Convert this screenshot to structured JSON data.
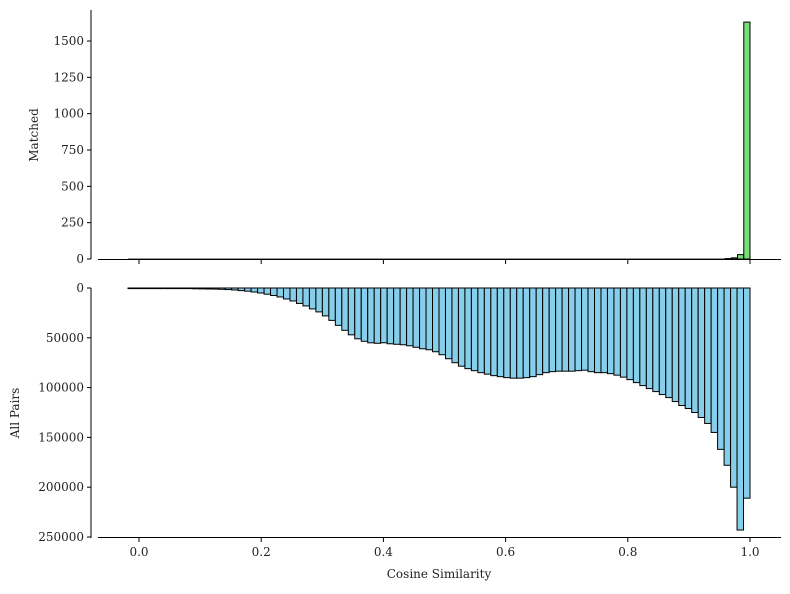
{
  "chart_data": [
    {
      "panel": "top",
      "type": "bar",
      "subtype": "histogram",
      "ylabel": "Matched",
      "xlabel": "",
      "ylim": [
        0,
        1720
      ],
      "yticks": [
        0,
        250,
        500,
        750,
        1000,
        1250,
        1500
      ],
      "ytick_labels": [
        "0",
        "250",
        "500",
        "750",
        "1000",
        "1250",
        "1500"
      ],
      "xlim": [
        -0.07,
        1.05
      ],
      "xticks": [
        0.0,
        0.2,
        0.4,
        0.6,
        0.8,
        1.0
      ],
      "xtick_labels_visible": false,
      "color": "#77dd77",
      "edgecolor": "#000000",
      "bins": [
        {
          "x0": 0.9592,
          "x1": 0.9694,
          "value": 3
        },
        {
          "x0": 0.9694,
          "x1": 0.9796,
          "value": 8
        },
        {
          "x0": 0.9796,
          "x1": 0.9898,
          "value": 30
        },
        {
          "x0": 0.9898,
          "x1": 1.0,
          "value": 1630
        }
      ],
      "note": "All other bins near 0"
    },
    {
      "panel": "bottom",
      "type": "bar",
      "subtype": "histogram (inverted y-axis)",
      "ylabel": "All Pairs",
      "xlabel": "Cosine Similarity",
      "ylim": [
        0,
        252000
      ],
      "y_inverted": true,
      "yticks": [
        0,
        50000,
        100000,
        150000,
        200000,
        250000
      ],
      "ytick_labels": [
        "0",
        "50000",
        "100000",
        "150000",
        "200000",
        "250000"
      ],
      "xlim": [
        -0.07,
        1.05
      ],
      "xticks": [
        0.0,
        0.2,
        0.4,
        0.6,
        0.8,
        1.0
      ],
      "xtick_labels": [
        "0.0",
        "0.2",
        "0.4",
        "0.6",
        "0.8",
        "1.0"
      ],
      "color": "#87ceeb",
      "edgecolor": "#000000",
      "bin_start": -0.018,
      "bin_end": 1.0,
      "values": [
        200,
        220,
        250,
        280,
        300,
        320,
        350,
        400,
        450,
        500,
        800,
        900,
        1000,
        1100,
        1300,
        1600,
        2000,
        2600,
        3200,
        4000,
        5000,
        6200,
        7500,
        9000,
        11000,
        13000,
        15500,
        18000,
        21000,
        24000,
        28000,
        32500,
        37500,
        42500,
        47000,
        51000,
        53500,
        55000,
        55500,
        55000,
        56000,
        56500,
        57000,
        58000,
        59500,
        61000,
        62000,
        64000,
        67000,
        71000,
        75000,
        78500,
        81000,
        83000,
        85000,
        86500,
        88000,
        89000,
        90000,
        90500,
        90500,
        90000,
        89000,
        87000,
        85000,
        84000,
        83500,
        83500,
        83500,
        83000,
        82500,
        84000,
        85000,
        85000,
        86000,
        87500,
        89500,
        92000,
        95000,
        98000,
        101000,
        104000,
        107000,
        110000,
        114000,
        118000,
        121000,
        125000,
        130000,
        136000,
        145000,
        162000,
        178000,
        200000,
        243000,
        211000
      ]
    }
  ]
}
